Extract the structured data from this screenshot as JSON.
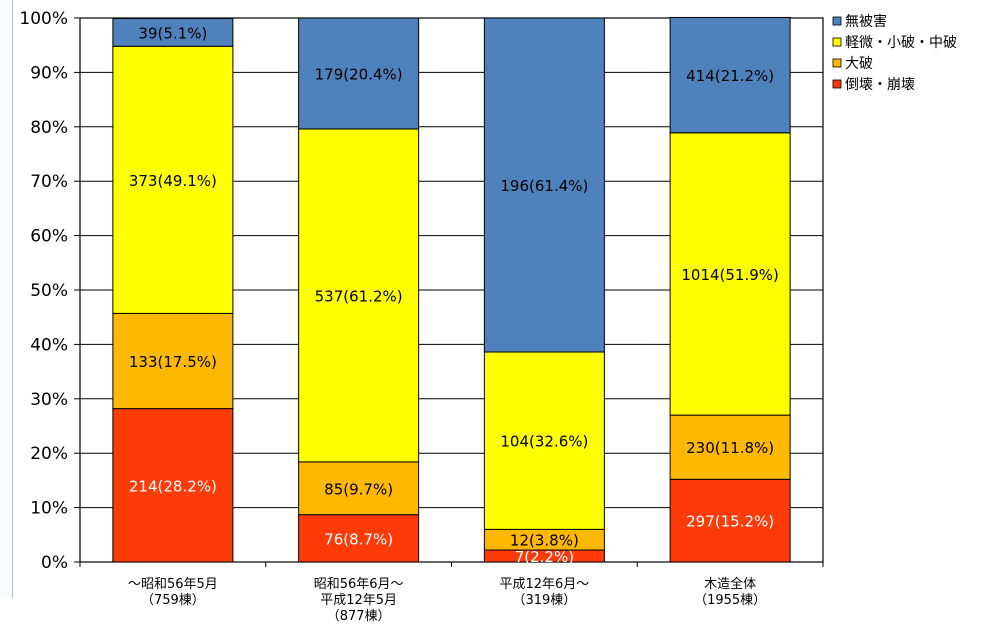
{
  "chart_data": {
    "type": "bar",
    "stacked": true,
    "percent_stacked": true,
    "categories": [
      [
        "～昭和56年5月",
        "（759棟）"
      ],
      [
        "昭和56年6月～",
        "平成12年5月",
        "（877棟）"
      ],
      [
        "平成12年6月～",
        "（319棟）"
      ],
      [
        "木造全体",
        "（1955棟）"
      ]
    ],
    "series": [
      {
        "name": "倒壊・崩壊",
        "color": "#ff3b0a",
        "label_color": "#ffffff",
        "values": [
          28.2,
          8.7,
          2.2,
          15.2
        ],
        "labels": [
          "214(28.2%)",
          "76(8.7%)",
          "7(2.2%)",
          "297(15.2%)"
        ]
      },
      {
        "name": "大破",
        "color": "#ffb800",
        "label_color": "#000000",
        "values": [
          17.5,
          9.7,
          3.8,
          11.8
        ],
        "labels": [
          "133(17.5%)",
          "85(9.7%)",
          "12(3.8%)",
          "230(11.8%)"
        ]
      },
      {
        "name": "軽微・小破・中破",
        "color": "#ffff00",
        "label_color": "#000000",
        "values": [
          49.1,
          61.2,
          32.6,
          51.9
        ],
        "labels": [
          "373(49.1%)",
          "537(61.2%)",
          "104(32.6%)",
          "1014(51.9%)"
        ]
      },
      {
        "name": "無被害",
        "color": "#4f81bd",
        "label_color": "#000000",
        "values": [
          5.1,
          20.4,
          61.4,
          21.2
        ],
        "labels": [
          "39(5.1%)",
          "179(20.4%)",
          "196(61.4%)",
          "414(21.2%)"
        ]
      }
    ],
    "y_ticks": [
      "0%",
      "10%",
      "20%",
      "30%",
      "40%",
      "50%",
      "60%",
      "70%",
      "80%",
      "90%",
      "100%"
    ],
    "ylim": [
      0,
      100
    ],
    "grid": true,
    "legend": {
      "position": "top-right",
      "entries": [
        "無被害",
        "軽微・小破・中破",
        "大破",
        "倒壊・崩壊"
      ]
    }
  }
}
